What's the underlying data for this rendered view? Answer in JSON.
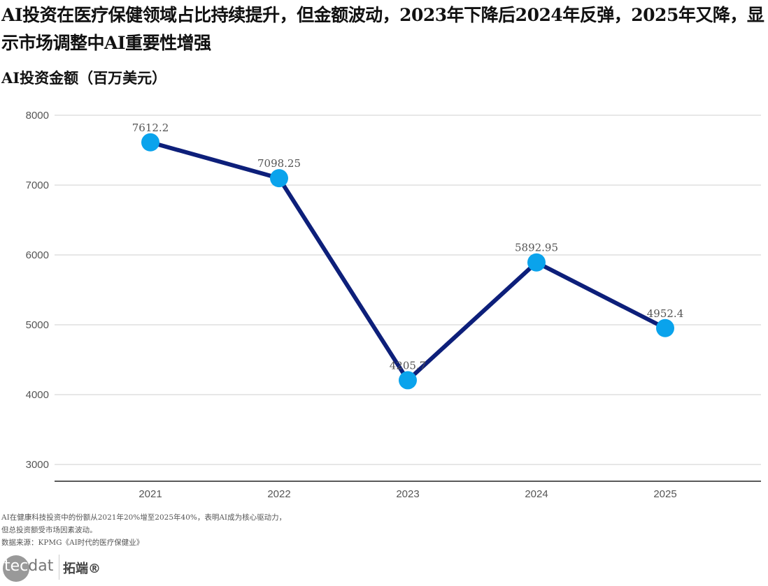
{
  "chart_data": {
    "type": "line",
    "title": "AI投资在医疗保健领域占比持续提升，但金额波动，2023年下降后2024年反弹，2025年又降，显示市场调整中AI重要性增强",
    "ylabel": "AI投资金额（百万美元）",
    "categories": [
      "2021",
      "2022",
      "2023",
      "2024",
      "2025"
    ],
    "values": [
      7612.2,
      7098.25,
      4205.7,
      5892.95,
      4952.4
    ],
    "data_labels": [
      "7612.2",
      "7098.25",
      "4205.7",
      "5892.95",
      "4952.4"
    ],
    "yticks": [
      "3000",
      "4000",
      "5000",
      "6000",
      "7000",
      "8000"
    ],
    "ylim": [
      2760,
      8000
    ],
    "grid": true,
    "line_color": "#0d1f7a",
    "marker_color": "#0aa3ec"
  },
  "footer": {
    "note1": "AI在健康科技投资中的份额从2021年20%增至2025年40%，表明AI成为核心驱动力，",
    "note2": "但总投资额受市场因素波动。",
    "source": "数据来源：KPMG《AI时代的医疗保健业》"
  },
  "logo": {
    "text": "tecdat",
    "cn": "拓端®"
  }
}
